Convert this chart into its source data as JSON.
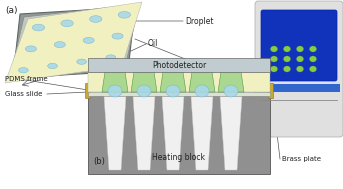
{
  "bg_color": "#ffffff",
  "label_a": "(a)",
  "label_b": "(b)",
  "label_droplet": "Droplet",
  "label_oil": "Oil",
  "label_pdms": "PDMS frame",
  "label_glass": "Glass slide",
  "label_photo": "Photodetector",
  "label_heating": "Heating block",
  "label_brass": "Brass plate",
  "color_droplet_fill": "#a8d8e8",
  "color_droplet_edge": "#7ab8cc",
  "color_green_pdms": "#aad890",
  "color_photodetector": "#c0ccd0",
  "color_heating_block": "#909090",
  "color_oil_layer": "#f0f0c0",
  "color_glass_frame": "#b0b8b8",
  "color_frame_dark": "#606860",
  "color_pcr_body": "#dcdcdc",
  "color_pcr_blue": "#1133bb",
  "color_pcr_blue_strip": "#3366cc",
  "color_pcr_green": "#88cc44",
  "color_brass": "#c8a830",
  "color_line": "#555555"
}
